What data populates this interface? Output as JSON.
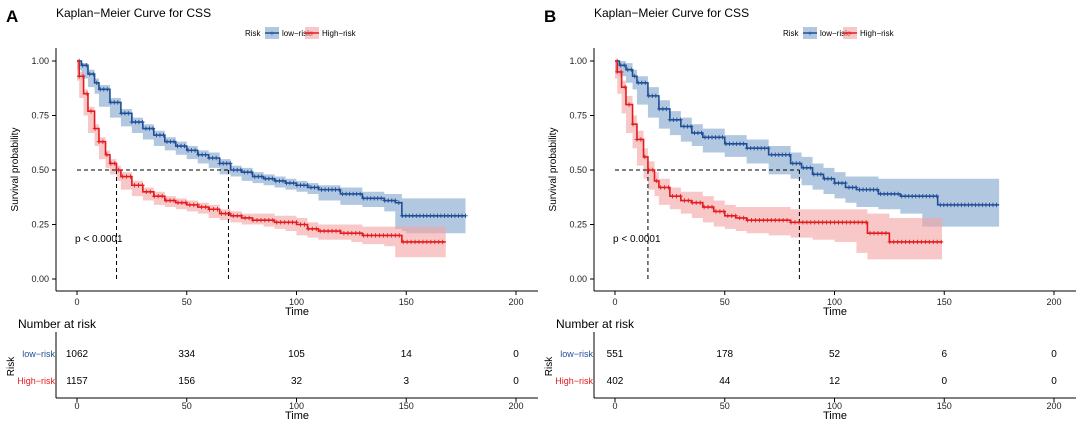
{
  "chart_data": [
    {
      "panel_label": "A",
      "type": "line",
      "title": "Kaplan−Meier Curve for CSS",
      "legend_title": "Risk",
      "legend_position": "top",
      "xlabel": "Time",
      "ylabel": "Survival probability",
      "xlim": [
        0,
        200
      ],
      "ylim": [
        0,
        1
      ],
      "xticks": [
        "0",
        "50",
        "100",
        "150",
        "200"
      ],
      "yticks": [
        "0.00",
        "0.25",
        "0.50",
        "0.75",
        "1.00"
      ],
      "pvalue_text": "p < 0.0001",
      "median_lines": [
        18,
        69
      ],
      "series": [
        {
          "name": "low−risk",
          "color": "#1F4E96",
          "band_color": "#7FA3CC",
          "x": [
            0,
            2,
            5,
            8,
            10,
            15,
            20,
            25,
            30,
            35,
            40,
            45,
            50,
            55,
            60,
            65,
            70,
            75,
            80,
            85,
            90,
            95,
            100,
            105,
            110,
            120,
            130,
            140,
            145,
            148,
            150,
            160,
            170,
            177
          ],
          "y": [
            1.0,
            0.98,
            0.94,
            0.9,
            0.87,
            0.81,
            0.76,
            0.72,
            0.69,
            0.66,
            0.63,
            0.61,
            0.59,
            0.57,
            0.555,
            0.53,
            0.5,
            0.49,
            0.47,
            0.46,
            0.45,
            0.44,
            0.43,
            0.42,
            0.41,
            0.39,
            0.37,
            0.36,
            0.35,
            0.29,
            0.29,
            0.29,
            0.29,
            0.29
          ],
          "lower": [
            0.99,
            0.96,
            0.92,
            0.88,
            0.85,
            0.79,
            0.74,
            0.7,
            0.67,
            0.64,
            0.61,
            0.59,
            0.57,
            0.55,
            0.53,
            0.51,
            0.48,
            0.47,
            0.45,
            0.44,
            0.43,
            0.42,
            0.41,
            0.4,
            0.39,
            0.36,
            0.34,
            0.33,
            0.31,
            0.23,
            0.22,
            0.21,
            0.21,
            0.21
          ],
          "upper": [
            1.0,
            0.99,
            0.96,
            0.92,
            0.89,
            0.83,
            0.78,
            0.74,
            0.71,
            0.68,
            0.65,
            0.63,
            0.61,
            0.59,
            0.58,
            0.55,
            0.52,
            0.51,
            0.49,
            0.48,
            0.47,
            0.46,
            0.45,
            0.44,
            0.43,
            0.42,
            0.4,
            0.39,
            0.39,
            0.37,
            0.37,
            0.37,
            0.37,
            0.37
          ]
        },
        {
          "name": "High−risk",
          "color": "#E41A1C",
          "band_color": "#F4A3A3",
          "x": [
            0,
            1,
            3,
            5,
            8,
            10,
            13,
            15,
            18,
            20,
            25,
            30,
            35,
            40,
            45,
            50,
            55,
            60,
            65,
            70,
            75,
            80,
            85,
            90,
            95,
            100,
            105,
            110,
            120,
            125,
            130,
            140,
            145,
            148,
            160,
            168
          ],
          "y": [
            1.0,
            0.93,
            0.85,
            0.77,
            0.69,
            0.63,
            0.57,
            0.53,
            0.5,
            0.47,
            0.43,
            0.4,
            0.38,
            0.36,
            0.35,
            0.34,
            0.33,
            0.32,
            0.3,
            0.29,
            0.28,
            0.27,
            0.27,
            0.26,
            0.26,
            0.25,
            0.23,
            0.22,
            0.21,
            0.21,
            0.2,
            0.2,
            0.2,
            0.17,
            0.17,
            0.17
          ],
          "lower": [
            0.99,
            0.91,
            0.83,
            0.75,
            0.67,
            0.61,
            0.55,
            0.51,
            0.48,
            0.45,
            0.41,
            0.38,
            0.36,
            0.34,
            0.33,
            0.32,
            0.31,
            0.3,
            0.28,
            0.27,
            0.26,
            0.25,
            0.25,
            0.24,
            0.23,
            0.22,
            0.2,
            0.19,
            0.18,
            0.18,
            0.17,
            0.16,
            0.15,
            0.1,
            0.1,
            0.1
          ],
          "upper": [
            1.0,
            0.95,
            0.87,
            0.79,
            0.71,
            0.65,
            0.59,
            0.55,
            0.52,
            0.49,
            0.45,
            0.42,
            0.4,
            0.38,
            0.37,
            0.36,
            0.35,
            0.34,
            0.32,
            0.31,
            0.3,
            0.3,
            0.3,
            0.29,
            0.29,
            0.28,
            0.26,
            0.25,
            0.25,
            0.25,
            0.24,
            0.24,
            0.24,
            0.24,
            0.24,
            0.24
          ]
        }
      ],
      "risk_table": {
        "title": "Number at risk",
        "axis_label": "Risk",
        "xlabel": "Time",
        "rows": [
          {
            "label": "low−risk",
            "values": [
              "1062",
              "334",
              "105",
              "14",
              "0"
            ]
          },
          {
            "label": "High−risk",
            "values": [
              "1157",
              "156",
              "32",
              "3",
              "0"
            ]
          }
        ]
      }
    },
    {
      "panel_label": "B",
      "type": "line",
      "title": "Kaplan−Meier Curve for CSS",
      "legend_title": "Risk",
      "legend_position": "top",
      "xlabel": "Time",
      "ylabel": "Survival probability",
      "xlim": [
        0,
        200
      ],
      "ylim": [
        0,
        1
      ],
      "xticks": [
        "0",
        "50",
        "100",
        "150",
        "200"
      ],
      "yticks": [
        "0.00",
        "0.25",
        "0.50",
        "0.75",
        "1.00"
      ],
      "pvalue_text": "p < 0.0001",
      "median_lines": [
        15,
        84
      ],
      "series": [
        {
          "name": "low−risk",
          "color": "#1F4E96",
          "band_color": "#7FA3CC",
          "x": [
            0,
            2,
            5,
            8,
            10,
            15,
            20,
            25,
            30,
            35,
            40,
            50,
            60,
            70,
            80,
            85,
            90,
            95,
            100,
            105,
            110,
            120,
            130,
            140,
            147,
            150,
            160,
            175
          ],
          "y": [
            1.0,
            0.98,
            0.96,
            0.93,
            0.9,
            0.84,
            0.78,
            0.73,
            0.7,
            0.67,
            0.65,
            0.62,
            0.6,
            0.57,
            0.53,
            0.51,
            0.48,
            0.46,
            0.44,
            0.42,
            0.41,
            0.39,
            0.38,
            0.38,
            0.34,
            0.34,
            0.34,
            0.34
          ],
          "lower": [
            0.99,
            0.95,
            0.93,
            0.9,
            0.87,
            0.8,
            0.74,
            0.69,
            0.66,
            0.63,
            0.61,
            0.58,
            0.56,
            0.53,
            0.48,
            0.46,
            0.43,
            0.41,
            0.39,
            0.37,
            0.35,
            0.33,
            0.32,
            0.3,
            0.24,
            0.24,
            0.24,
            0.24
          ],
          "upper": [
            1.0,
            1.0,
            0.99,
            0.96,
            0.93,
            0.88,
            0.82,
            0.77,
            0.74,
            0.71,
            0.69,
            0.66,
            0.64,
            0.61,
            0.58,
            0.56,
            0.53,
            0.51,
            0.49,
            0.47,
            0.47,
            0.46,
            0.46,
            0.46,
            0.46,
            0.46,
            0.46,
            0.46
          ]
        },
        {
          "name": "High−risk",
          "color": "#E41A1C",
          "band_color": "#F4A3A3",
          "x": [
            0,
            1,
            3,
            5,
            8,
            10,
            13,
            15,
            18,
            20,
            25,
            30,
            35,
            40,
            45,
            50,
            55,
            60,
            65,
            70,
            80,
            90,
            100,
            110,
            115,
            125,
            130,
            140,
            149
          ],
          "y": [
            1.0,
            0.95,
            0.88,
            0.8,
            0.71,
            0.64,
            0.56,
            0.5,
            0.45,
            0.42,
            0.38,
            0.36,
            0.35,
            0.33,
            0.31,
            0.29,
            0.28,
            0.27,
            0.27,
            0.27,
            0.26,
            0.26,
            0.26,
            0.26,
            0.21,
            0.17,
            0.17,
            0.17,
            0.17
          ],
          "lower": [
            0.98,
            0.92,
            0.85,
            0.76,
            0.67,
            0.6,
            0.52,
            0.46,
            0.41,
            0.38,
            0.34,
            0.32,
            0.3,
            0.28,
            0.26,
            0.24,
            0.23,
            0.22,
            0.21,
            0.21,
            0.2,
            0.19,
            0.18,
            0.17,
            0.12,
            0.09,
            0.09,
            0.09,
            0.09
          ],
          "upper": [
            1.0,
            0.98,
            0.91,
            0.84,
            0.75,
            0.68,
            0.6,
            0.54,
            0.49,
            0.46,
            0.42,
            0.4,
            0.4,
            0.38,
            0.36,
            0.34,
            0.33,
            0.33,
            0.33,
            0.33,
            0.32,
            0.32,
            0.32,
            0.32,
            0.3,
            0.28,
            0.28,
            0.28,
            0.28
          ]
        }
      ],
      "risk_table": {
        "title": "Number at risk",
        "axis_label": "Risk",
        "xlabel": "Time",
        "rows": [
          {
            "label": "low−risk",
            "values": [
              "551",
              "178",
              "52",
              "6",
              "0"
            ]
          },
          {
            "label": "High−risk",
            "values": [
              "402",
              "44",
              "12",
              "0",
              "0"
            ]
          }
        ]
      }
    }
  ]
}
